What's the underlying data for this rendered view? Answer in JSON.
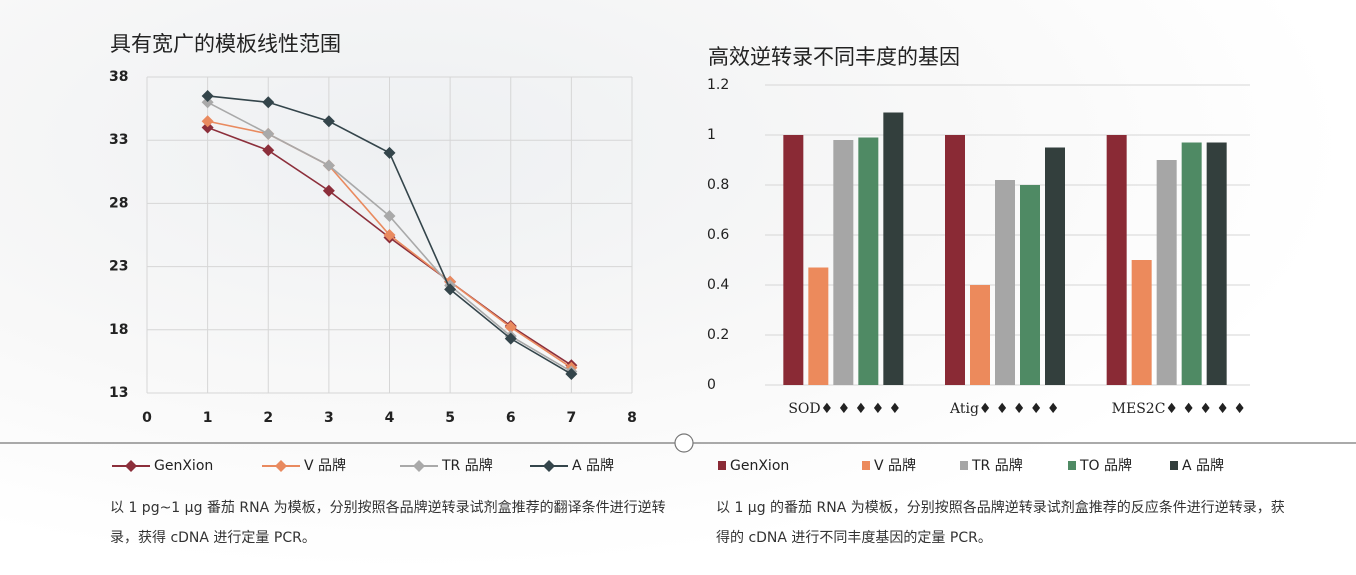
{
  "chart_data": [
    {
      "type": "line",
      "title": "具有宽广的模板线性范围",
      "x": [
        1,
        2,
        3,
        4,
        5,
        6,
        7
      ],
      "xlim": [
        0,
        8
      ],
      "xticks": [
        0,
        1,
        2,
        3,
        4,
        5,
        6,
        7,
        8
      ],
      "ylim": [
        13,
        38
      ],
      "yticks": [
        13,
        18,
        23,
        28,
        33,
        38
      ],
      "grid": true,
      "series": [
        {
          "name": "GenXion",
          "color": "#8c2f3b",
          "values": [
            34,
            32.2,
            29,
            25.3,
            21.8,
            18.3,
            15.2
          ]
        },
        {
          "name": "V 品牌",
          "color": "#e98a5f",
          "values": [
            34.5,
            33.5,
            31,
            25.5,
            21.8,
            18.2,
            15
          ]
        },
        {
          "name": "TR 品牌",
          "color": "#a9a9a9",
          "values": [
            36,
            33.5,
            31,
            27,
            21.5,
            17.5,
            14.7
          ]
        },
        {
          "name": "A 品牌",
          "color": "#34454b",
          "values": [
            36.5,
            36,
            34.5,
            32,
            21.2,
            17.3,
            14.5
          ]
        }
      ]
    },
    {
      "type": "bar",
      "title": "高效逆转录不同丰度的基因",
      "categories": [
        "SOD♦ ♦ ♦ ♦ ♦",
        "Atig♦ ♦ ♦ ♦ ♦",
        "MES2C♦ ♦ ♦ ♦ ♦"
      ],
      "ylim": [
        0,
        1.2
      ],
      "yticks": [
        0,
        0.2,
        0.4,
        0.6,
        0.8,
        1,
        1.2
      ],
      "grid": true,
      "series": [
        {
          "name": "GenXion",
          "color": "#8a2a35",
          "values": [
            1,
            1,
            1
          ]
        },
        {
          "name": "V 品牌",
          "color": "#ec8a5c",
          "values": [
            0.47,
            0.4,
            0.5
          ]
        },
        {
          "name": "TR 品牌",
          "color": "#a6a6a6",
          "values": [
            0.98,
            0.82,
            0.9
          ]
        },
        {
          "name": "TO 品牌",
          "color": "#4f8a64",
          "values": [
            0.99,
            0.8,
            0.97
          ]
        },
        {
          "name": "A 品牌",
          "color": "#333f3d",
          "values": [
            1.09,
            0.95,
            0.97
          ]
        }
      ]
    }
  ],
  "captions": [
    "以 1 pg~1 μg 番茄 RNA 为模板，分别按照各品牌逆转录试剂盒推荐的翻译条件进行逆转录，获得 cDNA 进行定量 PCR。",
    "以 1 μg 的番茄 RNA 为模板，分别按照各品牌逆转录试剂盒推荐的反应条件进行逆转录，获得的 cDNA 进行不同丰度基因的定量 PCR。"
  ]
}
